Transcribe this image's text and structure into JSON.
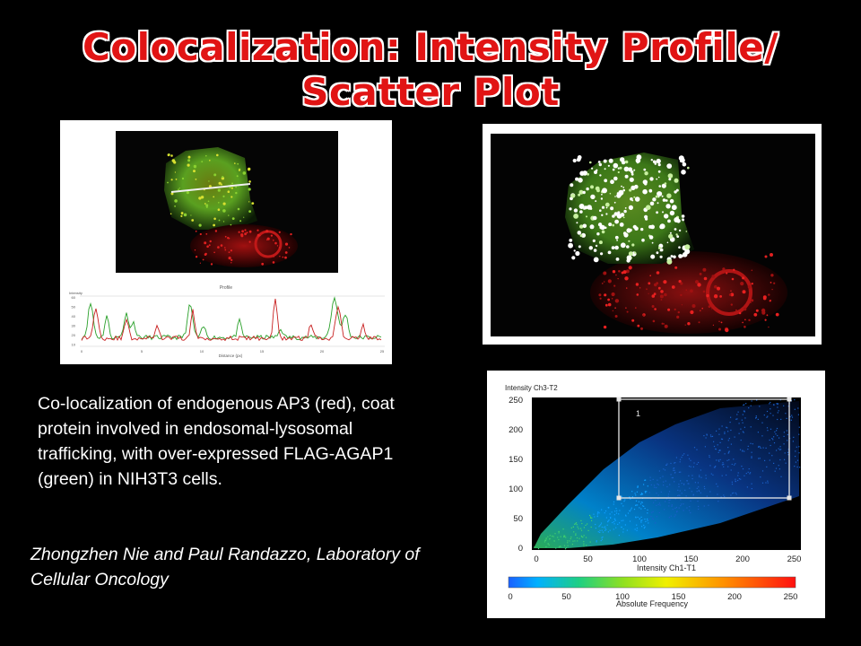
{
  "title": {
    "line1": "Colocalization: Intensity Profile/",
    "line2": "Scatter Plot"
  },
  "caption": "Co-localization of endogenous AP3 (red), coat protein involved in endosomal-lysosomal trafficking, with over-expressed FLAG-AGAP1 (green) in NIH3T3 cells.",
  "credit": "Zhongzhen  Nie and Paul Randazzo, Laboratory of Cellular Oncology",
  "profile_chart": {
    "title": "Profile",
    "ylabel": "Intensity",
    "xlabel": "Distance (px)",
    "yticks": [
      "60",
      "50",
      "40",
      "30",
      "20",
      "10"
    ],
    "xticks": [
      "0",
      "5",
      "10",
      "15",
      "20",
      "25"
    ]
  },
  "scatter_chart": {
    "ylabel": "Intensity Ch3-T2",
    "xlabel": "Intensity Ch1-T1",
    "yticks": [
      "250",
      "200",
      "150",
      "100",
      "50",
      "0"
    ],
    "xticks": [
      "0",
      "50",
      "100",
      "150",
      "200",
      "250"
    ],
    "region_label": "1",
    "colorbar_ticks": [
      "0",
      "50",
      "100",
      "150",
      "200",
      "250"
    ],
    "colorbar_label": "Absolute Frequency",
    "colors": {
      "red_channel": "#e02020",
      "green_channel": "#3ab030",
      "coloc": "#ffffff"
    }
  }
}
